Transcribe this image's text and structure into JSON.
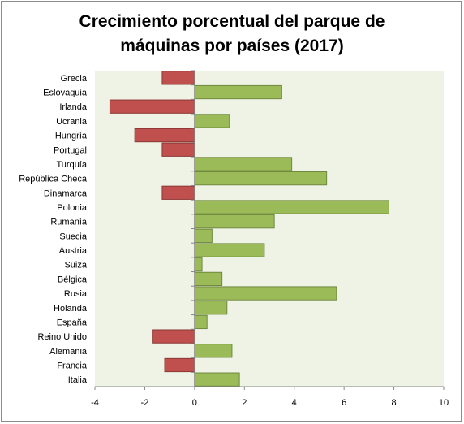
{
  "chart_data": {
    "type": "bar",
    "orientation": "horizontal",
    "title_lines": [
      "Crecimiento porcentual del parque de",
      "máquinas por países (2017)"
    ],
    "xlabel": "",
    "ylabel": "",
    "xlim": [
      -4,
      10
    ],
    "x_ticks": [
      -4,
      -2,
      0,
      2,
      4,
      6,
      8,
      10
    ],
    "grid": false,
    "legend": "none",
    "plot_background": "#eef3e6",
    "colors": {
      "positive": "#9bbb59",
      "negative": "#c0504d",
      "positive_border": "#71893f",
      "negative_border": "#8c3836"
    },
    "categories": [
      "Grecia",
      "Eslovaquia",
      "Irlanda",
      "Ucrania",
      "Hungría",
      "Portugal",
      "Turquía",
      "República Checa",
      "Dinamarca",
      "Polonia",
      "Rumanía",
      "Suecia",
      "Austria",
      "Suiza",
      "Bélgica",
      "Rusia",
      "Holanda",
      "España",
      "Reino Unido",
      "Alemania",
      "Francia",
      "Italia"
    ],
    "values": [
      -1.3,
      3.5,
      -3.4,
      1.4,
      -2.4,
      -1.3,
      3.9,
      5.3,
      -1.3,
      7.8,
      3.2,
      0.7,
      2.8,
      0.3,
      1.1,
      5.7,
      1.3,
      0.5,
      -1.7,
      1.5,
      -1.2,
      1.8
    ]
  }
}
